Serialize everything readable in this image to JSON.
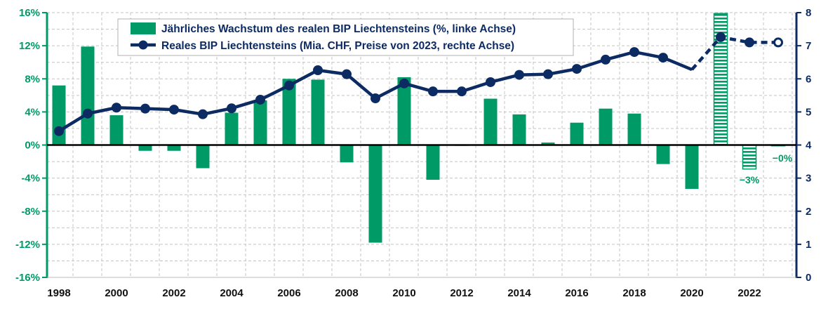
{
  "chart_data": {
    "type": "bar+line",
    "title": "",
    "x": [
      1998,
      1999,
      2000,
      2001,
      2002,
      2003,
      2004,
      2005,
      2006,
      2007,
      2008,
      2009,
      2010,
      2011,
      2012,
      2013,
      2014,
      2015,
      2016,
      2017,
      2018,
      2019,
      2020,
      2021,
      2022,
      2023
    ],
    "x_tick_labels": [
      "1998",
      "2000",
      "2002",
      "2004",
      "2006",
      "2008",
      "2010",
      "2012",
      "2014",
      "2016",
      "2018",
      "2020",
      "2022"
    ],
    "series": [
      {
        "name": "Jährliches Wachstum des realen BIP Liechtensteins (%, linke Achse)",
        "type": "bar",
        "axis": "left",
        "color": "#009a66",
        "values": [
          7.2,
          11.9,
          3.6,
          -0.7,
          -0.7,
          -2.8,
          3.9,
          5.4,
          8.0,
          7.9,
          -2.1,
          -11.8,
          8.2,
          -4.2,
          -0.1,
          5.6,
          3.7,
          0.3,
          2.7,
          4.4,
          3.8,
          -2.3,
          -5.3,
          15.9,
          -2.9,
          -0.1
        ],
        "estimated_from_index": 23
      },
      {
        "name": "Reales BIP Liechtensteins (Mia. CHF, Preise von 2023, rechte Achse)",
        "type": "line",
        "axis": "right",
        "color": "#0c2b63",
        "values": [
          4.42,
          4.95,
          5.13,
          5.1,
          5.07,
          4.93,
          5.11,
          5.37,
          5.8,
          6.26,
          6.14,
          5.41,
          5.86,
          5.62,
          5.62,
          5.9,
          6.12,
          6.14,
          6.3,
          6.58,
          6.81,
          6.64,
          6.28,
          7.26,
          7.1,
          7.1
        ],
        "dashed_from_index": 22
      }
    ],
    "left_axis": {
      "min": -16,
      "max": 16,
      "step": 4,
      "tick_labels": [
        "-16%",
        "-12%",
        "-8%",
        "-4%",
        "0%",
        "4%",
        "8%",
        "12%",
        "16%"
      ]
    },
    "right_axis": {
      "min": 0,
      "max": 8,
      "step": 1,
      "tick_labels": [
        "0",
        "1",
        "2",
        "3",
        "4",
        "5",
        "6",
        "7",
        "8"
      ]
    },
    "annotations": [
      "−3%",
      "−0%"
    ],
    "legend_position": "top-center",
    "grid": true
  }
}
